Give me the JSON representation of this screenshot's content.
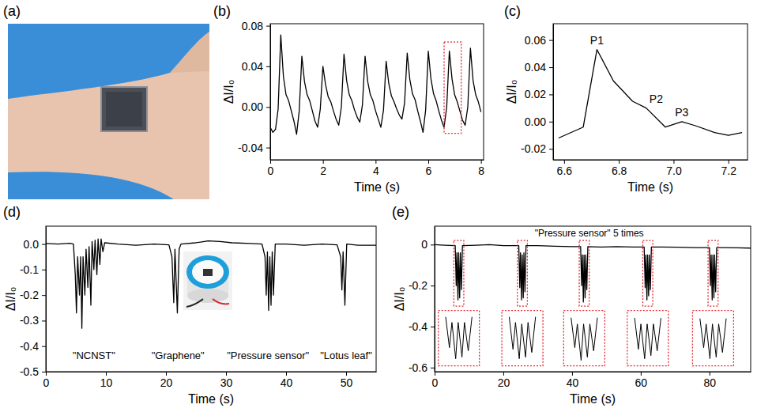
{
  "chart_data": [
    {
      "type": "image",
      "panel_label": "(a)"
    },
    {
      "type": "line",
      "panel_label": "(b)",
      "x_label": "Time (s)",
      "y_label": "ΔI/I₀",
      "color": "#000000",
      "xlim": [
        0,
        8.1
      ],
      "xticks": [
        0,
        2,
        4,
        6,
        8
      ],
      "ylim": [
        -0.052,
        0.082
      ],
      "yticks": [
        -0.04,
        {
          "value": 0,
          "label": "0.00"
        },
        0.04,
        0.08
      ],
      "x": [
        0,
        0.1,
        0.2,
        0.3,
        0.4,
        0.5,
        0.6,
        0.7,
        0.8,
        0.9,
        1,
        1.1,
        1.2,
        1.3,
        1.4,
        1.5,
        1.6,
        1.7,
        1.8,
        1.9,
        2,
        2.1,
        2.2,
        2.3,
        2.4,
        2.5,
        2.6,
        2.7,
        2.8,
        2.9,
        3,
        3.1,
        3.2,
        3.3,
        3.4,
        3.5,
        3.6,
        3.7,
        3.8,
        3.9,
        4,
        4.1,
        4.2,
        4.3,
        4.4,
        4.5,
        4.6,
        4.7,
        4.8,
        4.9,
        5,
        5.1,
        5.2,
        5.3,
        5.4,
        5.5,
        5.6,
        5.7,
        5.8,
        5.9,
        6,
        6.1,
        6.2,
        6.3,
        6.4,
        6.5,
        6.6,
        6.7,
        6.8,
        6.9,
        7,
        7.1,
        7.2,
        7.3,
        7.4,
        7.5,
        7.6,
        7.7,
        7.8,
        7.9,
        8
      ],
      "values": [
        -0.02,
        -0.025,
        -0.022,
        -0.002,
        0.071,
        0.03,
        0.012,
        0.006,
        -0.004,
        -0.014,
        -0.027,
        -0.004,
        0.05,
        0.025,
        0.012,
        0.006,
        -0.004,
        -0.014,
        -0.02,
        -0.002,
        0.04,
        0.022,
        0.01,
        0.005,
        -0.004,
        -0.012,
        -0.018,
        0,
        0.052,
        0.026,
        0.012,
        0.006,
        -0.003,
        -0.01,
        -0.015,
        0.002,
        0.05,
        0.025,
        0.012,
        0.006,
        -0.004,
        -0.012,
        -0.02,
        -0.003,
        0.045,
        0.023,
        0.011,
        0.005,
        -0.002,
        -0.008,
        -0.012,
        0.004,
        0.053,
        0.027,
        0.013,
        0.007,
        -0.004,
        -0.014,
        -0.025,
        -0.003,
        0.055,
        0.028,
        0.013,
        0.006,
        -0.004,
        -0.013,
        -0.02,
        0,
        0.055,
        0.028,
        0.012,
        0.005,
        -0.004,
        -0.013,
        -0.018,
        0,
        0.058,
        0.026,
        0.012,
        0.005,
        -0.005
      ],
      "zoom_boxes": [
        {
          "xlim": [
            6.6,
            7.25
          ],
          "ylim": [
            -0.026,
            0.064
          ]
        }
      ]
    },
    {
      "type": "line",
      "panel_label": "(c)",
      "x_label": "Time (s)",
      "y_label": "ΔI/I₀",
      "color": "#000000",
      "xlim": [
        6.56,
        7.27
      ],
      "xticks": [
        6.6,
        6.8,
        {
          "value": 7,
          "label": "7.0"
        },
        7.2
      ],
      "ylim": [
        -0.028,
        0.072
      ],
      "yticks": [
        -0.02,
        {
          "value": 0,
          "label": "0.00"
        },
        0.02,
        0.04,
        0.06
      ],
      "x": [
        6.58,
        6.67,
        6.72,
        6.78,
        6.85,
        6.9,
        6.97,
        7.03,
        7.08,
        7.15,
        7.2,
        7.25
      ],
      "values": [
        -0.012,
        -0.004,
        0.053,
        0.03,
        0.015,
        0.01,
        -0.004,
        0,
        -0.003,
        -0.008,
        -0.01,
        -0.008
      ],
      "annotations": [
        {
          "text": "P1",
          "x": 6.72,
          "y": 0.053
        },
        {
          "text": "P2",
          "x": 6.9,
          "y": 0.01
        },
        {
          "text": "P3",
          "x": 7.03,
          "y": 0
        }
      ]
    },
    {
      "type": "line",
      "panel_label": "(d)",
      "x_label": "Time (s)",
      "y_label": "ΔI/I₀",
      "color": "#000000",
      "xlim": [
        0,
        55
      ],
      "xticks": [
        0,
        10,
        20,
        30,
        40,
        50
      ],
      "ylim": [
        -0.5,
        0.07
      ],
      "yticks": [
        {
          "value": 0,
          "label": "0.0"
        },
        -0.1,
        -0.2,
        -0.3,
        -0.4,
        -0.5
      ],
      "x": [
        0,
        2,
        4,
        4.6,
        4.9,
        5.1,
        5.3,
        5.6,
        5.8,
        6,
        6.2,
        6.5,
        6.7,
        7,
        7.2,
        7.5,
        7.7,
        8,
        8.2,
        8.5,
        8.7,
        9,
        9.2,
        9.5,
        9.8,
        12,
        15,
        18,
        20.5,
        21,
        21.3,
        21.5,
        21.9,
        22.2,
        22.5,
        25,
        27,
        29,
        31,
        34,
        36,
        36.5,
        36.7,
        36.9,
        37.1,
        37.3,
        37.5,
        37.7,
        37.9,
        38.2,
        40,
        43,
        46,
        48.5,
        49.1,
        49.3,
        49.5,
        49.8,
        50.1,
        52,
        55
      ],
      "values": [
        0.002,
        0,
        0.003,
        0,
        -0.12,
        -0.27,
        -0.05,
        -0.2,
        -0.05,
        -0.33,
        -0.05,
        -0.2,
        -0.02,
        -0.17,
        -0.01,
        -0.24,
        0.01,
        -0.1,
        0.015,
        -0.12,
        0.02,
        -0.08,
        0.02,
        -0.03,
        0.005,
        0,
        -0.005,
        0,
        -0.003,
        -0.05,
        -0.23,
        -0.02,
        -0.27,
        -0.02,
        0,
        0.005,
        0.012,
        0.01,
        0.005,
        0.002,
        0,
        -0.05,
        -0.2,
        -0.03,
        -0.26,
        -0.05,
        -0.24,
        -0.03,
        -0.2,
        0,
        0,
        -0.005,
        0,
        -0.003,
        -0.05,
        -0.18,
        -0.03,
        -0.24,
        0,
        -0.005,
        -0.005
      ],
      "annotations": [
        {
          "text": "\"NCNST\"",
          "x": 8,
          "y": -0.45
        },
        {
          "text": "\"Graphene\"",
          "x": 22,
          "y": -0.45
        },
        {
          "text": "\"Pressure sensor\"",
          "x": 37,
          "y": -0.45
        },
        {
          "text": "\"Lotus leaf\"",
          "x": 50,
          "y": -0.45
        }
      ]
    },
    {
      "type": "line",
      "panel_label": "(e)",
      "x_label": "Time (s)",
      "y_label": "ΔI/I₀",
      "color": "#000000",
      "xlim": [
        0,
        92
      ],
      "xticks": [
        0,
        20,
        40,
        60,
        80
      ],
      "ylim": [
        -0.62,
        0.09
      ],
      "yticks": [
        0,
        -0.2,
        -0.4,
        -0.6
      ],
      "x": [
        0,
        3,
        6,
        6.3,
        6.5,
        6.8,
        7,
        7.3,
        7.5,
        7.8,
        8.1,
        12,
        16,
        20,
        24.5,
        24.8,
        25,
        25.3,
        25.5,
        25.8,
        26,
        26.3,
        26.6,
        30,
        35,
        40,
        42.5,
        42.8,
        43,
        43.3,
        43.5,
        43.8,
        44,
        44.3,
        44.6,
        48,
        53,
        58,
        61,
        61.3,
        61.5,
        61.8,
        62,
        62.3,
        62.5,
        62.8,
        63.1,
        66,
        71,
        76,
        80,
        80.3,
        80.5,
        80.8,
        81,
        81.3,
        81.5,
        81.8,
        82.1,
        84,
        88,
        92
      ],
      "values": [
        0,
        -0.003,
        -0.005,
        -0.2,
        -0.04,
        -0.27,
        -0.04,
        -0.26,
        -0.04,
        -0.22,
        -0.005,
        -0.003,
        0,
        -0.005,
        -0.005,
        -0.21,
        -0.04,
        -0.27,
        -0.05,
        -0.26,
        -0.04,
        -0.23,
        -0.005,
        -0.005,
        -0.008,
        -0.01,
        -0.01,
        -0.2,
        -0.05,
        -0.28,
        -0.05,
        -0.26,
        -0.05,
        -0.22,
        -0.01,
        -0.012,
        -0.01,
        -0.012,
        -0.012,
        -0.21,
        -0.05,
        -0.27,
        -0.05,
        -0.25,
        -0.05,
        -0.22,
        -0.012,
        -0.012,
        -0.013,
        -0.015,
        -0.015,
        -0.2,
        -0.05,
        -0.27,
        -0.05,
        -0.26,
        -0.05,
        -0.23,
        -0.015,
        -0.015,
        -0.016,
        -0.017
      ],
      "annotations": [
        {
          "text": "\"Pressure sensor\" 5 times",
          "x": 45,
          "y": 0.04
        }
      ],
      "zoom_boxes": [
        {
          "xlim": [
            5.6,
            8.5
          ],
          "ylim": [
            -0.3,
            0.02
          ]
        },
        {
          "xlim": [
            24.1,
            27
          ],
          "ylim": [
            -0.3,
            0.02
          ]
        },
        {
          "xlim": [
            42.1,
            45
          ],
          "ylim": [
            -0.3,
            0.02
          ]
        },
        {
          "xlim": [
            60.6,
            63.5
          ],
          "ylim": [
            -0.3,
            0.02
          ]
        },
        {
          "xlim": [
            79.6,
            82.5
          ],
          "ylim": [
            -0.3,
            0.02
          ]
        }
      ]
    }
  ]
}
